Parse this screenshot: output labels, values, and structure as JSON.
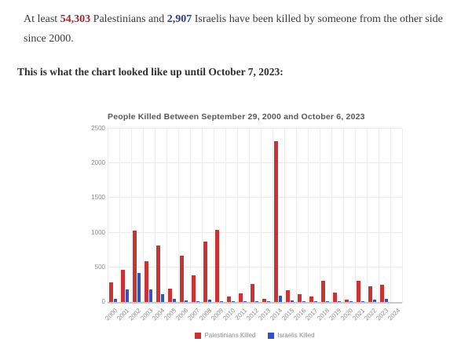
{
  "intro": {
    "before_pal": "At least ",
    "palestinian_count": "54,303",
    "between": " Palestinians and ",
    "israeli_count": "2,907",
    "after": " Israelis have been killed by someone from the other side since 2000.",
    "chart_caption": "This is what the chart looked like up until October 7, 2023:"
  },
  "colors": {
    "palestinian_text": "#9c2b2e",
    "israeli_text": "#2e3d8f",
    "palestinian_bar": "#cb3234",
    "israeli_bar": "#3452c4",
    "grid": "#ededed",
    "axis_label": "#8a8a8a",
    "title": "#585858"
  },
  "chart_data": {
    "type": "bar",
    "title": "People Killed Between September 29, 2000 and October 6, 2023",
    "categories": [
      "2000",
      "2001",
      "2002",
      "2003",
      "2004",
      "2005",
      "2006",
      "2007",
      "2008",
      "2009",
      "2010",
      "2011",
      "2012",
      "2013",
      "2014",
      "2015",
      "2016",
      "2017",
      "2018",
      "2019",
      "2020",
      "2021",
      "2022",
      "2023",
      "2024"
    ],
    "series": [
      {
        "name": "Palestinians Killed",
        "color": "#cb3234",
        "values": [
          280,
          465,
          1035,
          590,
          820,
          190,
          665,
          385,
          870,
          1045,
          80,
          120,
          255,
          45,
          2315,
          175,
          110,
          80,
          300,
          135,
          30,
          305,
          225,
          245,
          0
        ]
      },
      {
        "name": "Israelis Killed",
        "color": "#3452c4",
        "values": [
          40,
          185,
          420,
          185,
          110,
          50,
          25,
          15,
          35,
          10,
          10,
          10,
          10,
          5,
          90,
          25,
          15,
          15,
          15,
          10,
          5,
          10,
          30,
          45,
          0
        ]
      }
    ],
    "xlabel": "",
    "ylabel": "",
    "ylim": [
      0,
      2500
    ],
    "yticks": [
      0,
      500,
      1000,
      1500,
      2000,
      2500
    ],
    "grid": true,
    "legend_position": "bottom"
  }
}
